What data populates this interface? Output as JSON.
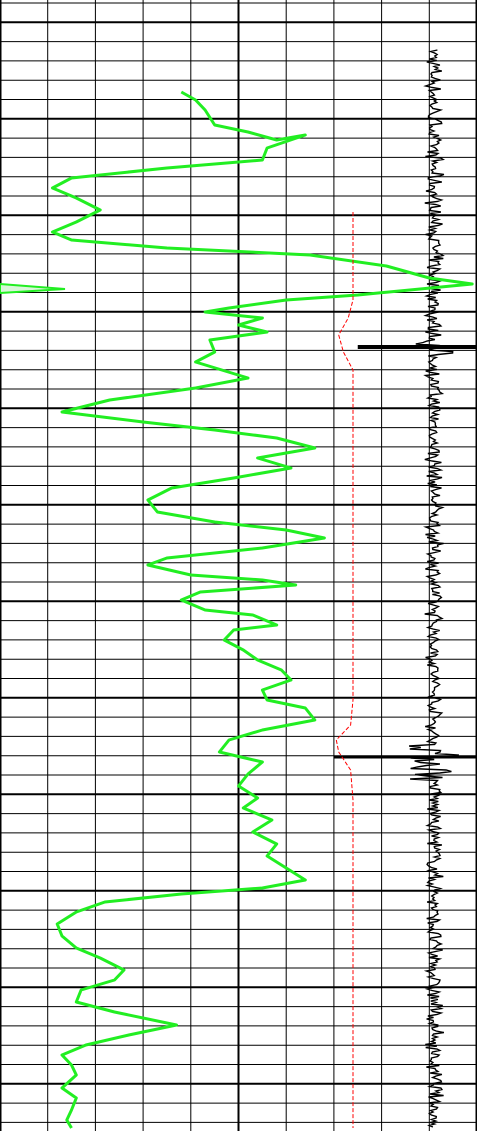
{
  "chart_data": {
    "type": "line",
    "title": "",
    "xlabel": "",
    "ylabel": "",
    "grid": true,
    "legend": "none",
    "colors": {
      "background": "#ffffff",
      "grid": "#000000",
      "gamma_ray": "#22ee22",
      "caliper": "#ff0000",
      "noise_trace": "#000000"
    },
    "x_scale": {
      "min": 0,
      "max": 10,
      "major_every": 5
    },
    "depth_scale": {
      "top": 0,
      "bottom": 1131,
      "minor_every": 19.3,
      "major_every": 96.5
    },
    "series": [
      {
        "id": "gamma",
        "points": [
          [
            3.8,
            92
          ],
          [
            4.1,
            100
          ],
          [
            4.3,
            110
          ],
          [
            4.5,
            125
          ],
          [
            5.2,
            132
          ],
          [
            5.8,
            140
          ],
          [
            6.4,
            135
          ],
          [
            5.6,
            148
          ],
          [
            5.5,
            160
          ],
          [
            3.5,
            168
          ],
          [
            1.5,
            178
          ],
          [
            1.1,
            188
          ],
          [
            1.6,
            198
          ],
          [
            2.1,
            210
          ],
          [
            1.6,
            222
          ],
          [
            1.1,
            232
          ],
          [
            1.5,
            240
          ],
          [
            3.5,
            248
          ],
          [
            6.5,
            255
          ],
          [
            8.1,
            266
          ],
          [
            9.0,
            278
          ],
          [
            9.9,
            284
          ],
          [
            7.5,
            295
          ],
          [
            6.0,
            300
          ],
          [
            4.8,
            308
          ],
          [
            4.3,
            312
          ],
          [
            5.5,
            318
          ],
          [
            5.0,
            325
          ],
          [
            5.6,
            332
          ],
          [
            4.4,
            340
          ],
          [
            4.5,
            352
          ],
          [
            4.1,
            362
          ],
          [
            5.2,
            378
          ],
          [
            4.1,
            388
          ],
          [
            2.3,
            400
          ],
          [
            1.3,
            412
          ],
          [
            3.0,
            422
          ],
          [
            4.5,
            430
          ],
          [
            5.8,
            438
          ],
          [
            6.6,
            448
          ],
          [
            5.4,
            458
          ],
          [
            6.1,
            468
          ],
          [
            4.9,
            478
          ],
          [
            3.6,
            488
          ],
          [
            3.1,
            500
          ],
          [
            3.3,
            512
          ],
          [
            4.5,
            522
          ],
          [
            6.0,
            530
          ],
          [
            6.8,
            538
          ],
          [
            5.5,
            548
          ],
          [
            3.5,
            558
          ],
          [
            3.1,
            565
          ],
          [
            4.0,
            575
          ],
          [
            5.5,
            580
          ],
          [
            6.2,
            585
          ],
          [
            4.2,
            592
          ],
          [
            3.8,
            600
          ],
          [
            4.3,
            610
          ],
          [
            5.3,
            615
          ],
          [
            5.8,
            625
          ],
          [
            4.9,
            630
          ],
          [
            4.7,
            640
          ],
          [
            5.1,
            650
          ],
          [
            5.4,
            660
          ],
          [
            5.9,
            670
          ],
          [
            6.1,
            680
          ],
          [
            5.5,
            690
          ],
          [
            5.6,
            700
          ],
          [
            6.4,
            708
          ],
          [
            6.6,
            720
          ],
          [
            5.5,
            730
          ],
          [
            4.8,
            740
          ],
          [
            4.6,
            752
          ],
          [
            5.5,
            762
          ],
          [
            5.2,
            774
          ],
          [
            5.0,
            786
          ],
          [
            5.4,
            798
          ],
          [
            5.1,
            808
          ],
          [
            5.7,
            820
          ],
          [
            5.3,
            832
          ],
          [
            5.8,
            844
          ],
          [
            5.6,
            856
          ],
          [
            6.0,
            868
          ],
          [
            6.4,
            880
          ],
          [
            5.5,
            888
          ],
          [
            3.8,
            894
          ],
          [
            2.2,
            902
          ],
          [
            1.6,
            912
          ],
          [
            1.2,
            924
          ],
          [
            1.3,
            936
          ],
          [
            1.6,
            948
          ],
          [
            2.1,
            958
          ],
          [
            2.6,
            970
          ],
          [
            2.4,
            980
          ],
          [
            1.7,
            990
          ],
          [
            1.6,
            1002
          ],
          [
            2.4,
            1012
          ],
          [
            3.7,
            1025
          ],
          [
            2.7,
            1035
          ],
          [
            1.8,
            1045
          ],
          [
            1.3,
            1055
          ],
          [
            1.5,
            1065
          ],
          [
            1.6,
            1075
          ],
          [
            1.3,
            1088
          ],
          [
            1.6,
            1098
          ],
          [
            1.5,
            1110
          ],
          [
            1.4,
            1120
          ],
          [
            1.5,
            1128
          ]
        ]
      },
      {
        "id": "caliper",
        "points": [
          [
            7.4,
            212
          ],
          [
            7.4,
            260
          ],
          [
            7.4,
            300
          ],
          [
            7.3,
            318
          ],
          [
            7.1,
            335
          ],
          [
            7.2,
            352
          ],
          [
            7.4,
            370
          ],
          [
            7.4,
            420
          ],
          [
            7.4,
            500
          ],
          [
            7.4,
            600
          ],
          [
            7.4,
            700
          ],
          [
            7.35,
            725
          ],
          [
            7.05,
            740
          ],
          [
            7.1,
            752
          ],
          [
            7.35,
            770
          ],
          [
            7.4,
            800
          ],
          [
            7.4,
            900
          ],
          [
            7.4,
            1000
          ],
          [
            7.4,
            1128
          ]
        ]
      }
    ]
  }
}
